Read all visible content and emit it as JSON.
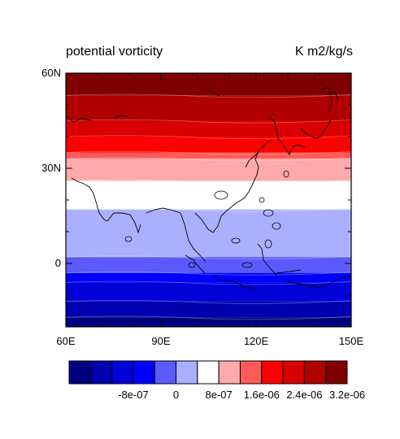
{
  "title_left": "potential vorticity",
  "title_right": "K m2/kg/s",
  "map": {
    "lon_range": [
      60,
      150
    ],
    "lat_range": [
      -20,
      60
    ],
    "projection": "cylindrical equidistant",
    "y_ticks": [
      {
        "value": 60,
        "label": "60N"
      },
      {
        "value": 30,
        "label": "30N"
      },
      {
        "value": 0,
        "label": "0"
      }
    ],
    "x_ticks": [
      {
        "value": 60,
        "label": "60E"
      },
      {
        "value": 90,
        "label": "90E"
      },
      {
        "value": 120,
        "label": "120E"
      },
      {
        "value": 150,
        "label": "150E"
      }
    ]
  },
  "chart_data": {
    "type": "heatmap",
    "variable": "potential vorticity",
    "units": "K m2/kg/s",
    "contour_levels": [
      -1.6e-06,
      -1.2e-06,
      -8e-07,
      -4e-07,
      0,
      4e-07,
      8e-07,
      1.2e-06,
      1.6e-06,
      2e-06,
      2.4e-06,
      2.8e-06,
      3.2e-06
    ],
    "colors": [
      "#00007f",
      "#0000b0",
      "#0000d8",
      "#0000ff",
      "#5a5aff",
      "#aab0ff",
      "#ffffff",
      "#ffaaaa",
      "#ff5a5a",
      "#ff0000",
      "#d80000",
      "#b00000",
      "#7f0000"
    ],
    "colorbar_labels": [
      {
        "level": -8e-07,
        "label": "-8e-07"
      },
      {
        "level": 0,
        "label": "0"
      },
      {
        "level": 8e-07,
        "label": "8e-07"
      },
      {
        "level": 1.6e-06,
        "label": "1.6e-06"
      },
      {
        "level": 2.4e-06,
        "label": "2.4e-06"
      },
      {
        "level": 3.2e-06,
        "label": "3.2e-06"
      }
    ],
    "zonal_bands": [
      {
        "lat_from": 60,
        "lat_to": 53,
        "color_index": 12
      },
      {
        "lat_from": 53,
        "lat_to": 45,
        "color_index": 11
      },
      {
        "lat_from": 45,
        "lat_to": 40,
        "color_index": 10
      },
      {
        "lat_from": 40,
        "lat_to": 35,
        "color_index": 9
      },
      {
        "lat_from": 35,
        "lat_to": 33,
        "color_index": 8
      },
      {
        "lat_from": 33,
        "lat_to": 26,
        "color_index": 7
      },
      {
        "lat_from": 26,
        "lat_to": 17,
        "color_index": 6
      },
      {
        "lat_from": 17,
        "lat_to": 2,
        "color_index": 5
      },
      {
        "lat_from": 2,
        "lat_to": -3,
        "color_index": 4
      },
      {
        "lat_from": -3,
        "lat_to": -6,
        "color_index": 3
      },
      {
        "lat_from": -6,
        "lat_to": -12,
        "color_index": 2
      },
      {
        "lat_from": -12,
        "lat_to": -17,
        "color_index": 1
      },
      {
        "lat_from": -17,
        "lat_to": -20,
        "color_index": 0
      }
    ]
  }
}
